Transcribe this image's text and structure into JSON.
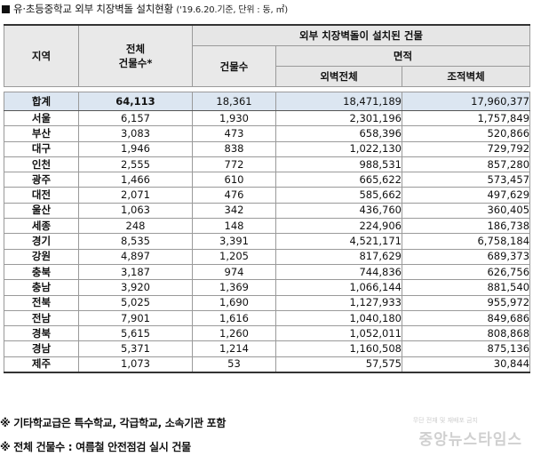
{
  "title": {
    "main": "유·초등중학교 외부 치장벽돌 설치현황",
    "sub": "('19.6.20.기준, 단위 : 동, ㎡)"
  },
  "headers": {
    "region": "지역",
    "total_buildings_line1": "전체",
    "total_buildings_line2": "건물수*",
    "group": "외부 치장벽돌이 설치된 건물",
    "buildings": "건물수",
    "area": "면적",
    "wall_total": "외벽전체",
    "brick_wall": "조적벽체"
  },
  "summary": {
    "region": "합계",
    "total": "64,113",
    "buildings": "18,361",
    "wall_total": "18,471,189",
    "brick_wall": "17,960,377"
  },
  "rows": [
    {
      "region": "서울",
      "total": "6,157",
      "buildings": "1,930",
      "wall_total": "2,301,196",
      "brick_wall": "1,757,849"
    },
    {
      "region": "부산",
      "total": "3,083",
      "buildings": "473",
      "wall_total": "658,396",
      "brick_wall": "520,866"
    },
    {
      "region": "대구",
      "total": "1,946",
      "buildings": "838",
      "wall_total": "1,022,130",
      "brick_wall": "729,792"
    },
    {
      "region": "인천",
      "total": "2,555",
      "buildings": "772",
      "wall_total": "988,531",
      "brick_wall": "857,280"
    },
    {
      "region": "광주",
      "total": "1,466",
      "buildings": "610",
      "wall_total": "665,622",
      "brick_wall": "573,457"
    },
    {
      "region": "대전",
      "total": "2,071",
      "buildings": "476",
      "wall_total": "585,662",
      "brick_wall": "497,629"
    },
    {
      "region": "울산",
      "total": "1,063",
      "buildings": "342",
      "wall_total": "436,760",
      "brick_wall": "360,405"
    },
    {
      "region": "세종",
      "total": "248",
      "buildings": "148",
      "wall_total": "224,906",
      "brick_wall": "186,738"
    },
    {
      "region": "경기",
      "total": "8,535",
      "buildings": "3,391",
      "wall_total": "4,521,171",
      "brick_wall": "6,758,184"
    },
    {
      "region": "강원",
      "total": "4,897",
      "buildings": "1,205",
      "wall_total": "817,629",
      "brick_wall": "689,373"
    },
    {
      "region": "충북",
      "total": "3,187",
      "buildings": "974",
      "wall_total": "744,836",
      "brick_wall": "626,756"
    },
    {
      "region": "충남",
      "total": "3,920",
      "buildings": "1,369",
      "wall_total": "1,066,144",
      "brick_wall": "881,540"
    },
    {
      "region": "전북",
      "total": "5,025",
      "buildings": "1,690",
      "wall_total": "1,127,933",
      "brick_wall": "955,972"
    },
    {
      "region": "전남",
      "total": "7,901",
      "buildings": "1,616",
      "wall_total": "1,040,180",
      "brick_wall": "849,686"
    },
    {
      "region": "경북",
      "total": "5,615",
      "buildings": "1,260",
      "wall_total": "1,052,011",
      "brick_wall": "808,868"
    },
    {
      "region": "경남",
      "total": "5,371",
      "buildings": "1,214",
      "wall_total": "1,160,508",
      "brick_wall": "875,136"
    },
    {
      "region": "제주",
      "total": "1,073",
      "buildings": "53",
      "wall_total": "57,575",
      "brick_wall": "30,844"
    }
  ],
  "notes": {
    "note1": "※ 기타학교급은 특수학교, 각급학교, 소속기관 포함",
    "note2": "※ 전체 건물수 : 여름철 안전점검 실시 건물"
  },
  "watermark": {
    "name": "중앙뉴스타임스",
    "small": "무단 전재 및 재배포 금지"
  },
  "colors": {
    "header_bg": "#e6e6e6",
    "summary_bg": "#dce6f1",
    "border": "#9a9a9a"
  }
}
